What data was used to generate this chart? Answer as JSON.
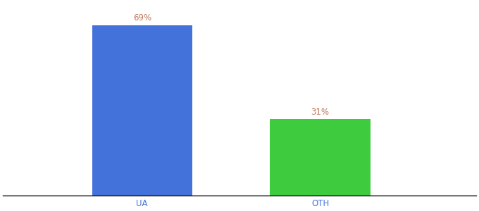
{
  "categories": [
    "UA",
    "OTH"
  ],
  "values": [
    69,
    31
  ],
  "bar_colors": [
    "#4472db",
    "#3ecc3e"
  ],
  "label_color": "#c07858",
  "label_fontsize": 8.5,
  "tick_fontsize": 8.5,
  "tick_color": "#4472db",
  "background_color": "#ffffff",
  "ylim": [
    0,
    78
  ],
  "bar_width": 0.18,
  "x_positions": [
    0.3,
    0.62
  ],
  "xlim": [
    0.05,
    0.9
  ]
}
